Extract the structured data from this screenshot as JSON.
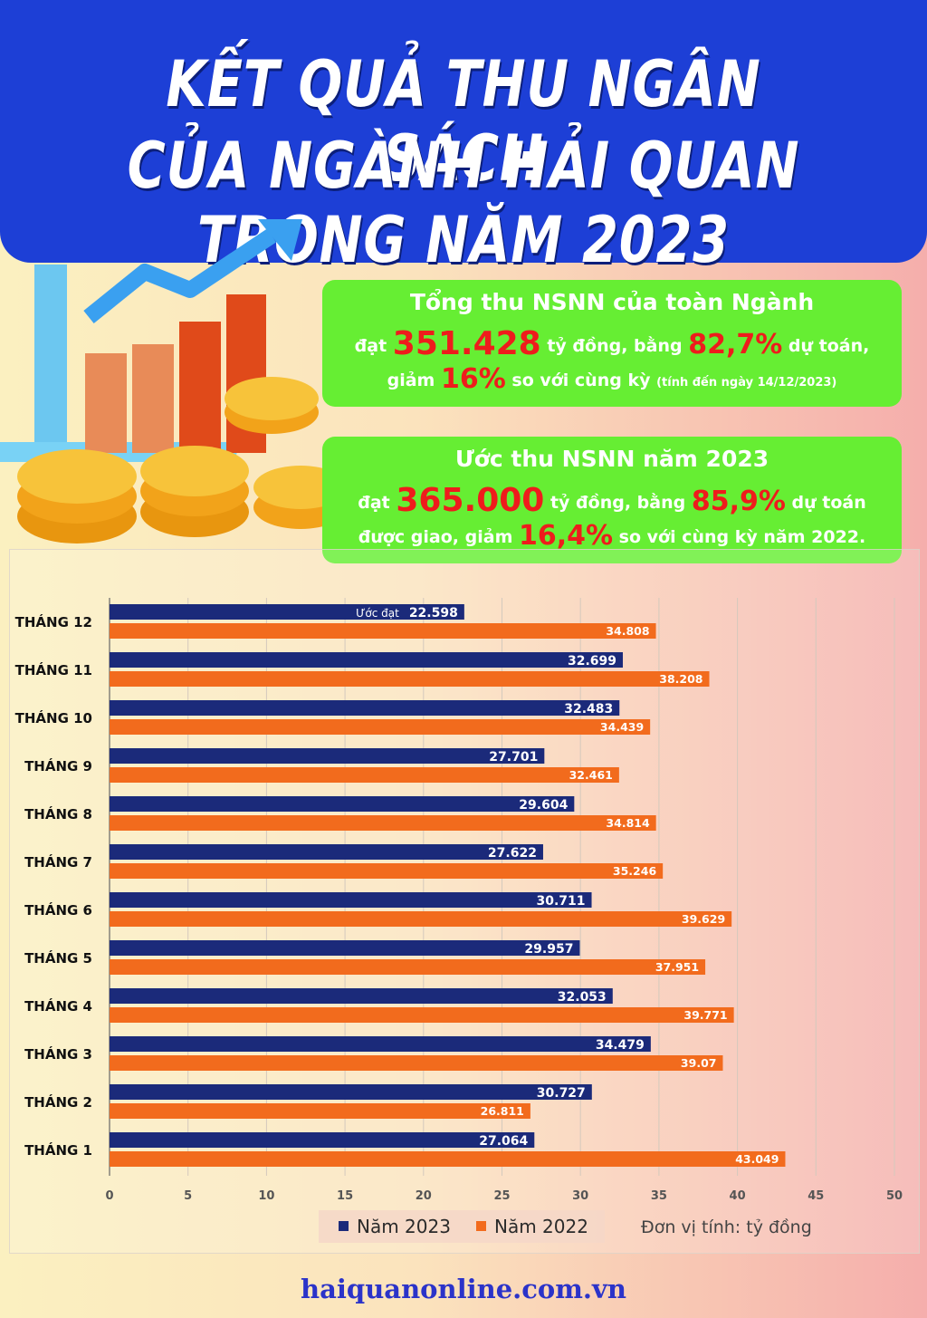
{
  "title": {
    "line1": "KẾT QUẢ THU NGÂN SÁCH",
    "line2": "CỦA NGÀNH HẢI QUAN TRONG NĂM 2023"
  },
  "box1": {
    "head": "Tổng thu NSNN của toàn Ngành",
    "l2a": "đạt ",
    "amount": "351.428",
    "l2b": " tỷ đồng, bằng ",
    "pct": "82,7%",
    "l2c": " dự toán,",
    "l3a": "giảm ",
    "dec": "16%",
    "l3b": " so với cùng kỳ ",
    "note": "(tính đến ngày 14/12/2023)"
  },
  "box2": {
    "head": "Ước thu NSNN năm 2023",
    "l2a": "đạt ",
    "amount": "365.000",
    "l2b": " tỷ đồng, bằng ",
    "pct": "85,9%",
    "l2c": " dự toán",
    "l3a": "được giao, giảm ",
    "dec": "16,4%",
    "l3b": " so với cùng kỳ năm 2022."
  },
  "legend": {
    "s1": "Năm 2023",
    "s2": "Năm 2022"
  },
  "unit_note": "Đơn vị tính: tỷ đồng",
  "website": "haiquanonline.com.vn",
  "colors": {
    "s2023": "#1b2a7a",
    "s2022": "#f26b1d",
    "header": "#1d3fd6",
    "box": "#66ee33"
  },
  "chart_data": {
    "type": "bar",
    "orientation": "horizontal",
    "categories": [
      "THÁNG 12",
      "THÁNG 11",
      "THÁNG 10",
      "THÁNG 9",
      "THÁNG 8",
      "THÁNG 7",
      "THÁNG 6",
      "THÁNG 5",
      "THÁNG 4",
      "THÁNG 3",
      "THÁNG 2",
      "THÁNG 1"
    ],
    "series": [
      {
        "name": "Năm 2023",
        "color": "#1b2a7a",
        "values": [
          22.598,
          32.699,
          32.483,
          27.701,
          29.604,
          27.622,
          30.711,
          29.957,
          32.053,
          34.479,
          30.727,
          27.064
        ],
        "labels": [
          "22.598",
          "32.699",
          "32.483",
          "27.701",
          "29.604",
          "27.622",
          "30.711",
          "29.957",
          "32.053",
          "34.479",
          "30.727",
          "27.064"
        ]
      },
      {
        "name": "Năm 2022",
        "color": "#f26b1d",
        "values": [
          34.808,
          38.208,
          34.439,
          32.461,
          34.814,
          35.246,
          39.629,
          37.951,
          39.771,
          39.07,
          26.811,
          43.049
        ],
        "labels": [
          "34.808",
          "38.208",
          "34.439",
          "32.461",
          "34.814",
          "35.246",
          "39.629",
          "37.951",
          "39.771",
          "39.07",
          "26.811",
          "43.049"
        ]
      }
    ],
    "annotations": [
      {
        "category": "THÁNG 12",
        "series": "Năm 2023",
        "text": "Ước đạt"
      }
    ],
    "xticks": [
      0,
      5,
      10,
      15,
      20,
      25,
      30,
      35,
      40,
      45,
      50
    ],
    "xlim": [
      0,
      50
    ],
    "grid": true,
    "legend": "bottom"
  }
}
